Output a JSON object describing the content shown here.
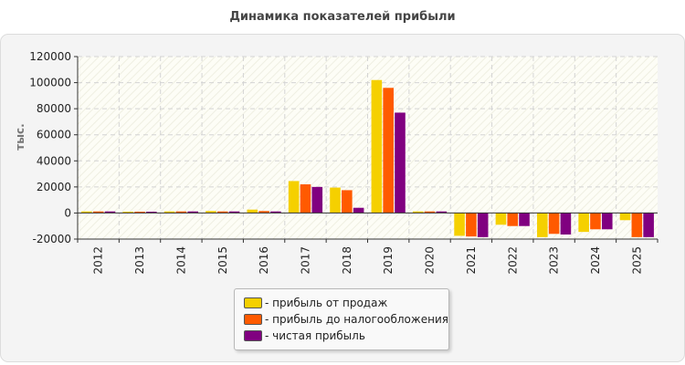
{
  "chart_data": {
    "type": "bar",
    "title": "Динамика показателей прибыли",
    "ylabel": "тыс.",
    "xlabel": "",
    "ylim": [
      -20000,
      120000
    ],
    "yticks": [
      -20000,
      0,
      20000,
      40000,
      60000,
      80000,
      100000,
      120000
    ],
    "grid": true,
    "legend_position": "bottom-center",
    "categories": [
      "2012",
      "2013",
      "2014",
      "2015",
      "2016",
      "2017",
      "2018",
      "2019",
      "2020",
      "2021",
      "2022",
      "2023",
      "2024",
      "2025"
    ],
    "series": [
      {
        "name": "- прибыль от продаж",
        "color": "#f5d000",
        "values": [
          1200,
          1000,
          1200,
          1500,
          2600,
          24500,
          19500,
          102000,
          1200,
          -17500,
          -9000,
          -18500,
          -14500,
          -5500
        ]
      },
      {
        "name": "- прибыль до налогообложения",
        "color": "#ff5a00",
        "values": [
          1200,
          1000,
          1200,
          1200,
          1500,
          22000,
          17500,
          96000,
          1200,
          -18000,
          -10000,
          -16000,
          -12500,
          -18500
        ]
      },
      {
        "name": "- чистая прибыль",
        "color": "#800080",
        "values": [
          1200,
          1000,
          1200,
          1200,
          1200,
          20000,
          4000,
          77000,
          1200,
          -18500,
          -10000,
          -16500,
          -12500,
          -18500
        ]
      }
    ]
  }
}
